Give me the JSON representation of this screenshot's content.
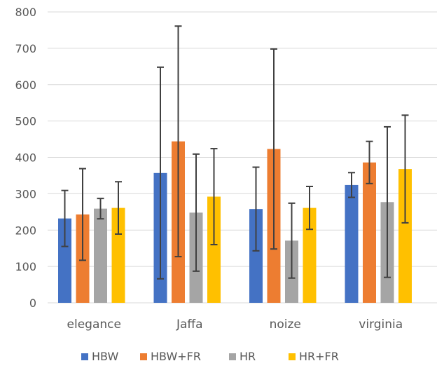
{
  "chart_data": {
    "type": "bar",
    "title": "",
    "xlabel": "",
    "ylabel": "",
    "ylim": [
      0,
      800
    ],
    "yticks": [
      0,
      100,
      200,
      300,
      400,
      500,
      600,
      700,
      800
    ],
    "grid": true,
    "legend_position": "bottom",
    "categories": [
      "elegance",
      "Jaffa",
      "noize",
      "virginia"
    ],
    "series": [
      {
        "name": "HBW",
        "color": "#4472c4",
        "values": [
          232,
          357,
          258,
          324
        ],
        "error": [
          77,
          291,
          115,
          34
        ]
      },
      {
        "name": "HBW+FR",
        "color": "#ed7d31",
        "values": [
          243,
          444,
          423,
          386
        ],
        "error": [
          126,
          317,
          275,
          58
        ]
      },
      {
        "name": "HR",
        "color": "#a5a5a5",
        "values": [
          259,
          248,
          171,
          277
        ],
        "error": [
          28,
          161,
          103,
          207
        ]
      },
      {
        "name": "HR+FR",
        "color": "#ffc000",
        "values": [
          261,
          292,
          261,
          368
        ],
        "error": [
          72,
          132,
          59,
          148
        ]
      }
    ]
  }
}
